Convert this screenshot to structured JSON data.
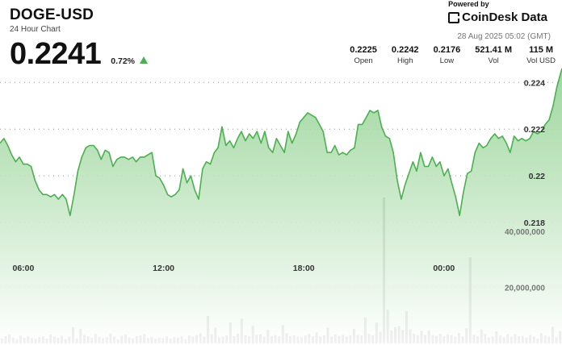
{
  "header": {
    "symbol": "DOGE-USD",
    "subtitle": "24 Hour Chart",
    "price": "0.2241",
    "change": "0.72%",
    "direction": "up"
  },
  "brand": {
    "powered": "Powered by",
    "name": "CoinDesk Data",
    "timestamp": "28 Aug 2025 05:02 (GMT)"
  },
  "stats": [
    {
      "value": "0.2225",
      "label": "Open"
    },
    {
      "value": "0.2242",
      "label": "High"
    },
    {
      "value": "0.2176",
      "label": "Low"
    },
    {
      "value": "521.41 M",
      "label": "Vol"
    },
    {
      "value": "115 M",
      "label": "Vol USD"
    }
  ],
  "colors": {
    "line": "#4caf50",
    "fill_top": "#8fd08f",
    "fill_bottom": "#ffffff",
    "volume_bar": "#666666",
    "up_arrow": "#4caf50"
  },
  "chart_data": {
    "type": "area",
    "price_axis": {
      "ticks": [
        "0.224",
        "0.222",
        "0.22",
        "0.218"
      ],
      "tick_values": [
        0.224,
        0.222,
        0.22,
        0.218
      ],
      "range": [
        0.217,
        0.2247
      ]
    },
    "volume_axis": {
      "ticks": [
        "40,000,000",
        "20,000,000"
      ],
      "tick_values": [
        40000000,
        20000000
      ],
      "range": [
        0,
        52000000
      ]
    },
    "time_axis": {
      "ticks": [
        "06:00",
        "12:00",
        "18:00",
        "00:00"
      ],
      "tick_positions_hours": [
        6,
        12,
        18,
        24
      ],
      "range_hours": [
        5.0,
        29.05
      ]
    },
    "price_series": [
      [
        5.0,
        0.2214
      ],
      [
        5.17,
        0.2216
      ],
      [
        5.33,
        0.2213
      ],
      [
        5.5,
        0.2209
      ],
      [
        5.67,
        0.2206
      ],
      [
        5.83,
        0.2208
      ],
      [
        6.0,
        0.2205
      ],
      [
        6.17,
        0.2205
      ],
      [
        6.33,
        0.2204
      ],
      [
        6.5,
        0.2198
      ],
      [
        6.67,
        0.2194
      ],
      [
        6.83,
        0.2192
      ],
      [
        7.0,
        0.2192
      ],
      [
        7.17,
        0.2191
      ],
      [
        7.33,
        0.2192
      ],
      [
        7.5,
        0.219
      ],
      [
        7.67,
        0.2192
      ],
      [
        7.83,
        0.219
      ],
      [
        8.0,
        0.2183
      ],
      [
        8.17,
        0.2192
      ],
      [
        8.33,
        0.2202
      ],
      [
        8.5,
        0.2208
      ],
      [
        8.67,
        0.2212
      ],
      [
        8.83,
        0.2213
      ],
      [
        9.0,
        0.2213
      ],
      [
        9.17,
        0.2211
      ],
      [
        9.33,
        0.2207
      ],
      [
        9.5,
        0.2211
      ],
      [
        9.67,
        0.221
      ],
      [
        9.83,
        0.2204
      ],
      [
        10.0,
        0.2207
      ],
      [
        10.17,
        0.2208
      ],
      [
        10.33,
        0.2208
      ],
      [
        10.5,
        0.2207
      ],
      [
        10.67,
        0.2208
      ],
      [
        10.83,
        0.2206
      ],
      [
        11.0,
        0.2208
      ],
      [
        11.17,
        0.2208
      ],
      [
        11.33,
        0.2209
      ],
      [
        11.5,
        0.221
      ],
      [
        11.67,
        0.22
      ],
      [
        11.83,
        0.2199
      ],
      [
        12.0,
        0.2196
      ],
      [
        12.17,
        0.2192
      ],
      [
        12.33,
        0.2191
      ],
      [
        12.5,
        0.2192
      ],
      [
        12.67,
        0.2194
      ],
      [
        12.83,
        0.2203
      ],
      [
        13.0,
        0.2197
      ],
      [
        13.17,
        0.22
      ],
      [
        13.33,
        0.2194
      ],
      [
        13.5,
        0.219
      ],
      [
        13.67,
        0.2203
      ],
      [
        13.83,
        0.2206
      ],
      [
        14.0,
        0.2205
      ],
      [
        14.17,
        0.221
      ],
      [
        14.33,
        0.2212
      ],
      [
        14.5,
        0.2221
      ],
      [
        14.67,
        0.2213
      ],
      [
        14.83,
        0.2215
      ],
      [
        15.0,
        0.2212
      ],
      [
        15.17,
        0.2216
      ],
      [
        15.33,
        0.2219
      ],
      [
        15.5,
        0.2215
      ],
      [
        15.67,
        0.2218
      ],
      [
        15.83,
        0.2216
      ],
      [
        16.0,
        0.2219
      ],
      [
        16.17,
        0.2214
      ],
      [
        16.33,
        0.2219
      ],
      [
        16.5,
        0.2212
      ],
      [
        16.67,
        0.221
      ],
      [
        16.83,
        0.2216
      ],
      [
        17.0,
        0.2213
      ],
      [
        17.17,
        0.221
      ],
      [
        17.33,
        0.2219
      ],
      [
        17.5,
        0.2214
      ],
      [
        17.67,
        0.2218
      ],
      [
        17.83,
        0.2223
      ],
      [
        18.0,
        0.2225
      ],
      [
        18.17,
        0.2227
      ],
      [
        18.33,
        0.2226
      ],
      [
        18.5,
        0.2225
      ],
      [
        18.67,
        0.2222
      ],
      [
        18.83,
        0.2219
      ],
      [
        19.0,
        0.221
      ],
      [
        19.17,
        0.221
      ],
      [
        19.33,
        0.2213
      ],
      [
        19.5,
        0.2209
      ],
      [
        19.67,
        0.221
      ],
      [
        19.83,
        0.2209
      ],
      [
        20.0,
        0.2211
      ],
      [
        20.17,
        0.2212
      ],
      [
        20.33,
        0.2222
      ],
      [
        20.5,
        0.2222
      ],
      [
        20.67,
        0.2225
      ],
      [
        20.83,
        0.2228
      ],
      [
        21.0,
        0.2227
      ],
      [
        21.17,
        0.2228
      ],
      [
        21.33,
        0.2221
      ],
      [
        21.5,
        0.2217
      ],
      [
        21.67,
        0.2216
      ],
      [
        21.83,
        0.221
      ],
      [
        22.0,
        0.2198
      ],
      [
        22.17,
        0.219
      ],
      [
        22.33,
        0.2196
      ],
      [
        22.5,
        0.2201
      ],
      [
        22.67,
        0.2206
      ],
      [
        22.83,
        0.2202
      ],
      [
        23.0,
        0.221
      ],
      [
        23.17,
        0.2204
      ],
      [
        23.33,
        0.2204
      ],
      [
        23.5,
        0.2208
      ],
      [
        23.67,
        0.2204
      ],
      [
        23.83,
        0.2206
      ],
      [
        24.0,
        0.22
      ],
      [
        24.17,
        0.2203
      ],
      [
        24.33,
        0.2197
      ],
      [
        24.5,
        0.2191
      ],
      [
        24.67,
        0.2183
      ],
      [
        24.83,
        0.2193
      ],
      [
        25.0,
        0.2201
      ],
      [
        25.17,
        0.2202
      ],
      [
        25.33,
        0.221
      ],
      [
        25.5,
        0.2214
      ],
      [
        25.67,
        0.2212
      ],
      [
        25.83,
        0.2213
      ],
      [
        26.0,
        0.2216
      ],
      [
        26.17,
        0.2218
      ],
      [
        26.33,
        0.2216
      ],
      [
        26.5,
        0.2217
      ],
      [
        26.67,
        0.2214
      ],
      [
        26.83,
        0.221
      ],
      [
        27.0,
        0.2217
      ],
      [
        27.17,
        0.2215
      ],
      [
        27.33,
        0.2216
      ],
      [
        27.5,
        0.2215
      ],
      [
        27.67,
        0.2216
      ],
      [
        27.83,
        0.2219
      ],
      [
        28.0,
        0.2218
      ],
      [
        28.17,
        0.2219
      ],
      [
        28.33,
        0.2222
      ],
      [
        28.5,
        0.2224
      ],
      [
        28.67,
        0.223
      ],
      [
        28.83,
        0.2238
      ],
      [
        29.05,
        0.2246
      ]
    ],
    "volume_series": [
      1.8,
      2.6,
      3.2,
      2.1,
      1.5,
      2.8,
      2.0,
      2.5,
      1.9,
      1.6,
      2.2,
      2.6,
      1.7,
      3.2,
      2.4,
      2.0,
      2.7,
      1.5,
      2.4,
      5.8,
      1.8,
      5.2,
      3.0,
      2.6,
      2.0,
      3.4,
      2.3,
      1.9,
      2.2,
      3.5,
      2.4,
      1.4,
      2.7,
      3.1,
      2.1,
      1.8,
      2.6,
      2.9,
      3.4,
      1.9,
      2.3,
      1.6,
      2.1,
      1.8,
      2.5,
      1.7,
      2.2,
      2.0,
      2.6,
      1.5,
      2.8,
      2.4,
      3.0,
      3.6,
      2.5,
      9.8,
      3.3,
      5.6,
      2.2,
      2.4,
      2.8,
      7.5,
      2.6,
      3.5,
      8.8,
      2.9,
      2.6,
      6.2,
      3.0,
      3.2,
      2.4,
      4.8,
      2.6,
      3.0,
      2.5,
      6.5,
      3.6,
      2.6,
      2.9,
      2.4,
      2.2,
      2.8,
      3.4,
      2.6,
      3.9,
      2.5,
      2.9,
      5.6,
      2.4,
      3.2,
      2.7,
      3.0,
      2.4,
      2.9,
      5.2,
      3.0,
      2.8,
      9.2,
      3.4,
      2.9,
      7.4,
      4.1,
      52.0,
      12.0,
      4.6,
      5.8,
      6.2,
      4.8,
      11.5,
      5.0,
      3.4,
      2.9,
      4.5,
      3.0,
      4.6,
      3.0,
      2.7,
      3.4,
      2.6,
      3.1,
      2.9,
      2.4,
      3.7,
      2.5,
      5.4,
      30.6,
      3.0,
      2.6,
      5.0,
      3.4,
      2.1,
      2.5,
      4.3,
      2.8,
      2.2,
      3.2,
      2.4,
      3.3,
      2.6,
      2.7,
      2.1,
      3.0,
      2.5,
      1.7,
      3.6,
      2.8,
      2.4,
      5.9,
      2.2,
      4.4
    ],
    "grid": {
      "horizontal": "dotted",
      "vertical": false
    },
    "legend": "none"
  }
}
